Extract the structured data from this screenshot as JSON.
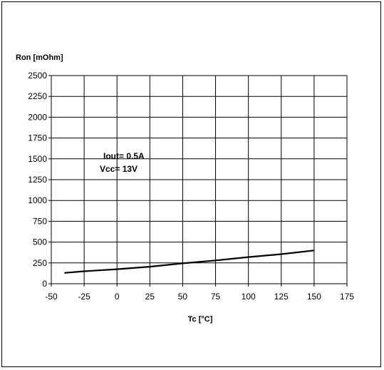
{
  "chart_data": {
    "type": "line",
    "title": "",
    "xlabel": "Tc [°C]",
    "ylabel": "Ron [mOhm]",
    "xlim": [
      -50,
      175
    ],
    "ylim": [
      0,
      2500
    ],
    "x_ticks": [
      -50,
      -25,
      0,
      25,
      50,
      75,
      100,
      125,
      150,
      175
    ],
    "y_ticks": [
      0,
      250,
      500,
      750,
      1000,
      1250,
      1500,
      1750,
      2000,
      2250,
      2500
    ],
    "grid": true,
    "annotations": [
      "Iout= 0.5A",
      "Vcc= 13V"
    ],
    "series": [
      {
        "x": [
          -40,
          -25,
          0,
          25,
          50,
          75,
          100,
          125,
          150
        ],
        "values": [
          130,
          150,
          175,
          205,
          245,
          280,
          320,
          355,
          400
        ]
      }
    ]
  }
}
